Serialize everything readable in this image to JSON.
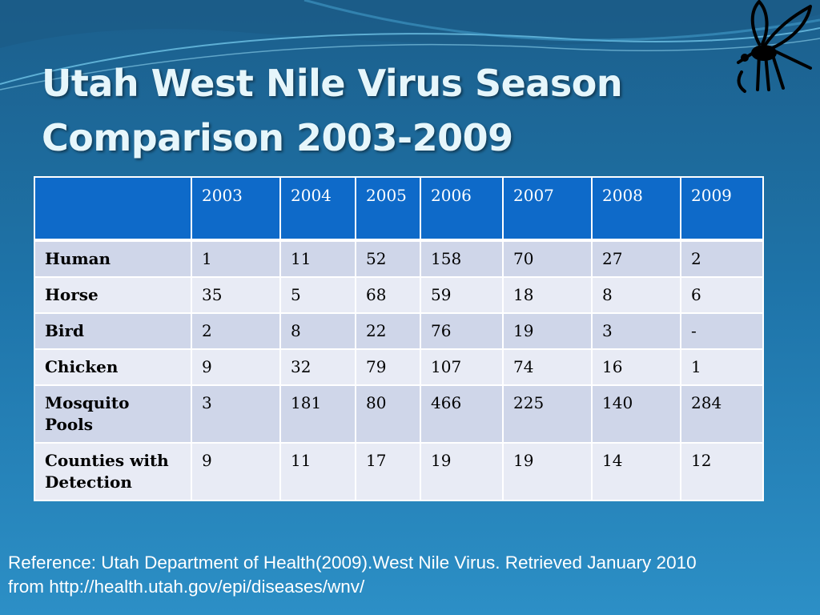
{
  "title": {
    "line1": "Utah West Nile Virus  Season",
    "line2": "Comparison 2003-2009"
  },
  "table": {
    "corner": "",
    "columns": [
      "2003",
      "2004",
      "2005",
      "2006",
      "2007",
      "2008",
      "2009"
    ],
    "rows": [
      {
        "label": "Human",
        "values": [
          "1",
          "11",
          "52",
          "158",
          "70",
          "27",
          "2"
        ]
      },
      {
        "label": "Horse",
        "values": [
          "35",
          "5",
          "68",
          "59",
          "18",
          "8",
          "6"
        ]
      },
      {
        "label": "Bird",
        "values": [
          "2",
          "8",
          "22",
          "76",
          "19",
          "3",
          "-"
        ]
      },
      {
        "label": "Chicken",
        "values": [
          "9",
          "32",
          "79",
          "107",
          "74",
          "16",
          "1"
        ]
      },
      {
        "label": "Mosquito Pools",
        "values": [
          "3",
          "181",
          "80",
          "466",
          "225",
          "140",
          "284"
        ]
      },
      {
        "label": "Counties with Detection",
        "values": [
          "9",
          "11",
          "17",
          "19",
          "19",
          "14",
          "12"
        ]
      }
    ]
  },
  "reference": {
    "line1": "Reference: Utah Department of Health(2009).West Nile Virus.  Retrieved January 2010",
    "line2": "from http://health.utah.gov/epi/diseases/wnv/"
  },
  "icons": {
    "decoration": "mosquito-icon"
  },
  "colors": {
    "background": "#1e73a8",
    "header": "#0e6ac9",
    "row_odd": "#cfd6e9",
    "row_even": "#e8ebf5",
    "title_text": "#e6f6fb"
  }
}
